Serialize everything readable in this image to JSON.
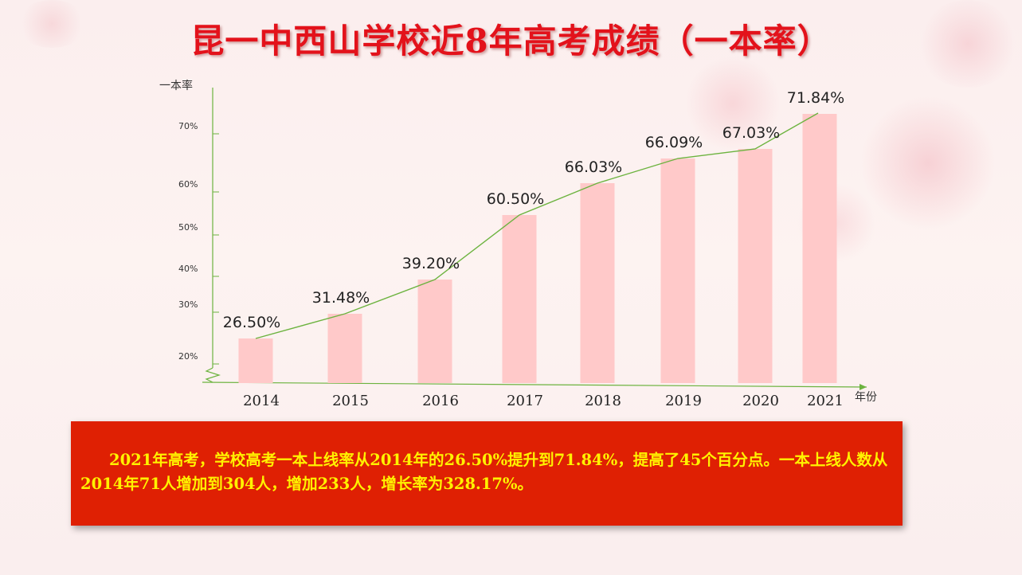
{
  "title": "昆一中西山学校近8年高考成绩（一本率）",
  "summary": "2021年高考，学校高考一本上线率从2014年的26.50%提升到71.84%，提高了45个百分点。一本上线人数从2014年71人增加到304人，增加233人，增长率为328.17%。",
  "colors": {
    "title": "#e3121b",
    "bar": "#ffc9c9",
    "line": "#6cb33f",
    "axis": "#6cb33f",
    "summary_bg": "#df2003",
    "summary_text": "#fff200"
  },
  "chart_data": {
    "type": "bar",
    "title": "",
    "ylabel": "一本率",
    "xlabel": "年份",
    "ytick_labels": [
      "20%",
      "30%",
      "40%",
      "50%",
      "60%",
      "70%"
    ],
    "categories": [
      "2014",
      "2015",
      "2016",
      "2017",
      "2018",
      "2019",
      "2020",
      "2021"
    ],
    "series": [
      {
        "values": [
          26.5,
          31.48,
          39.2,
          60.5,
          66.03,
          66.09,
          67.03,
          71.84
        ]
      }
    ],
    "data_labels": [
      "26.50%",
      "31.48%",
      "39.20%",
      "60.50%",
      "66.03%",
      "66.09%",
      "67.03%",
      "71.84%"
    ],
    "overlay": "trend line through bar tops",
    "axis_break": true,
    "grid": false,
    "legend": "none"
  }
}
